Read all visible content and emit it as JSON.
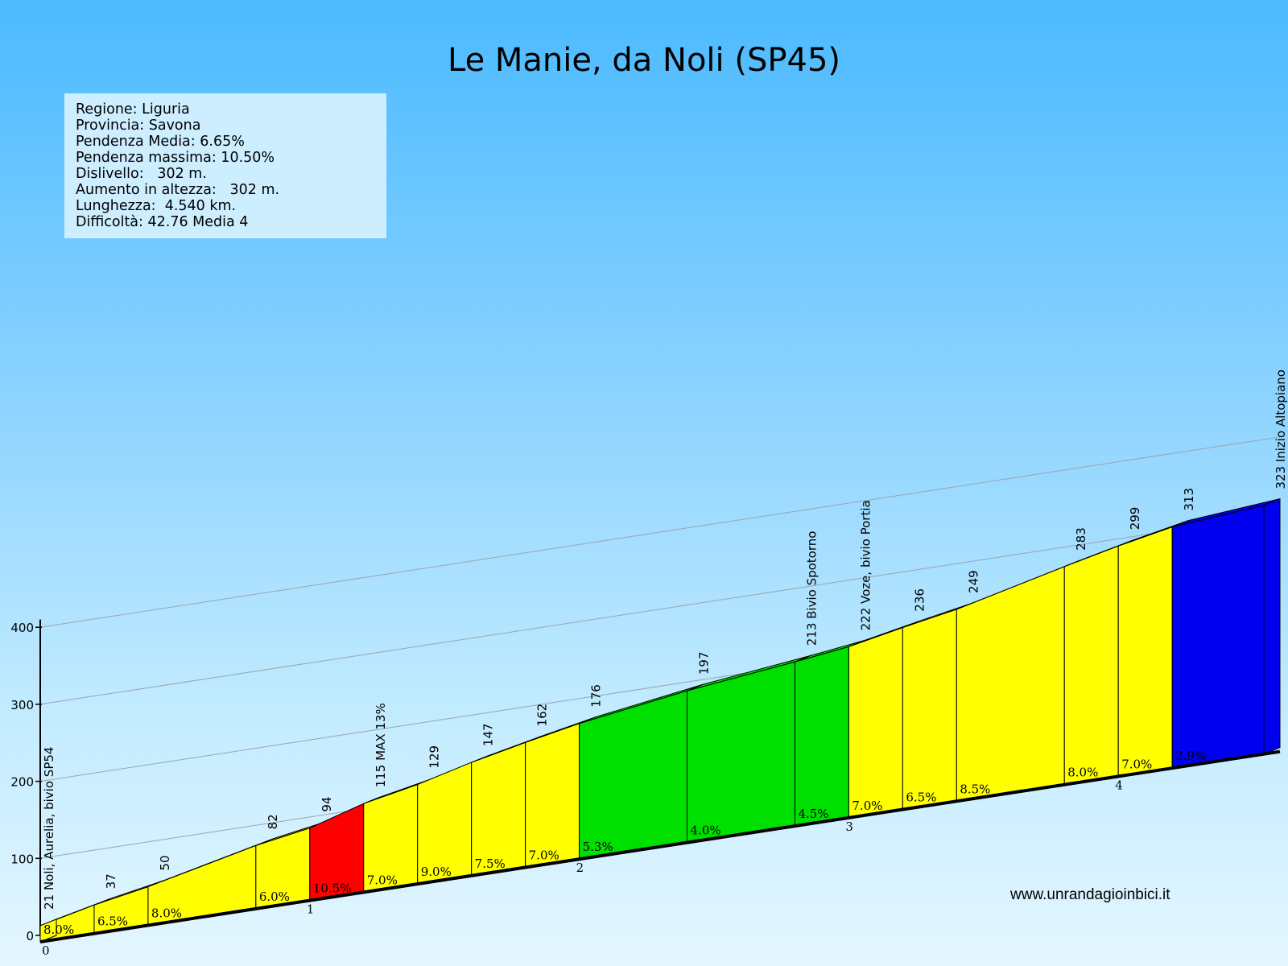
{
  "title": "Le Manie, da Noli (SP45)",
  "info": [
    "Regione: Liguria",
    "Provincia: Savona",
    "Pendenza Media: 6.65%",
    "Pendenza massima: 10.50%",
    "Dislivello:   302 m.",
    "Aumento in altezza:   302 m.",
    "Lunghezza:  4.540 km.",
    "Difficoltà: 42.76 Media 4"
  ],
  "website": "www.unrandagioinbici.it",
  "colors": {
    "yellow": "#ffff00",
    "red": "#ff0000",
    "green": "#00e000",
    "blue": "#0000ee"
  },
  "chart_data": {
    "type": "area",
    "y_ticks": [
      0,
      100,
      200,
      300,
      400
    ],
    "ylim": [
      0,
      400
    ],
    "km_ticks": [
      "0",
      "1",
      "2",
      "3",
      "4"
    ],
    "km_tick_values": [
      0,
      1,
      2,
      3,
      4
    ],
    "points": [
      {
        "km": 0.0,
        "alt": 21,
        "label": "21 Noli, Aurelia, bivio SP54"
      },
      {
        "km": 0.2,
        "alt": 37,
        "label": "37"
      },
      {
        "km": 0.4,
        "alt": 50,
        "label": "50"
      },
      {
        "km": 0.8,
        "alt": 82,
        "label": "82"
      },
      {
        "km": 1.0,
        "alt": 94,
        "label": "94"
      },
      {
        "km": 1.2,
        "alt": 115,
        "label": "115 MAX 13%"
      },
      {
        "km": 1.4,
        "alt": 129,
        "label": "129"
      },
      {
        "km": 1.6,
        "alt": 147,
        "label": "147"
      },
      {
        "km": 1.8,
        "alt": 162,
        "label": "162"
      },
      {
        "km": 2.0,
        "alt": 176,
        "label": "176"
      },
      {
        "km": 2.4,
        "alt": 197,
        "label": "197"
      },
      {
        "km": 2.8,
        "alt": 213,
        "label": "213 Bivio Spotorno"
      },
      {
        "km": 3.0,
        "alt": 222,
        "label": "222 Voze, bivio Portia"
      },
      {
        "km": 3.2,
        "alt": 236,
        "label": "236"
      },
      {
        "km": 3.4,
        "alt": 249,
        "label": "249"
      },
      {
        "km": 3.8,
        "alt": 283,
        "label": "283"
      },
      {
        "km": 4.0,
        "alt": 299,
        "label": "299"
      },
      {
        "km": 4.2,
        "alt": 313,
        "label": "313"
      },
      {
        "km": 4.54,
        "alt": 323,
        "label": "323 Inizio Altopiano"
      }
    ],
    "segments": [
      {
        "grade": "8.0%",
        "color": "yellow"
      },
      {
        "grade": "6.5%",
        "color": "yellow"
      },
      {
        "grade": "8.0%",
        "color": "yellow"
      },
      {
        "grade": "6.0%",
        "color": "yellow"
      },
      {
        "grade": "10.5%",
        "color": "red"
      },
      {
        "grade": "7.0%",
        "color": "yellow"
      },
      {
        "grade": "9.0%",
        "color": "yellow"
      },
      {
        "grade": "7.5%",
        "color": "yellow"
      },
      {
        "grade": "7.0%",
        "color": "yellow"
      },
      {
        "grade": "5.3%",
        "color": "green"
      },
      {
        "grade": "4.0%",
        "color": "green"
      },
      {
        "grade": "4.5%",
        "color": "green"
      },
      {
        "grade": "7.0%",
        "color": "yellow"
      },
      {
        "grade": "6.5%",
        "color": "yellow"
      },
      {
        "grade": "8.5%",
        "color": "yellow"
      },
      {
        "grade": "8.0%",
        "color": "yellow"
      },
      {
        "grade": "7.0%",
        "color": "yellow"
      },
      {
        "grade": "2.9%",
        "color": "blue"
      }
    ]
  }
}
